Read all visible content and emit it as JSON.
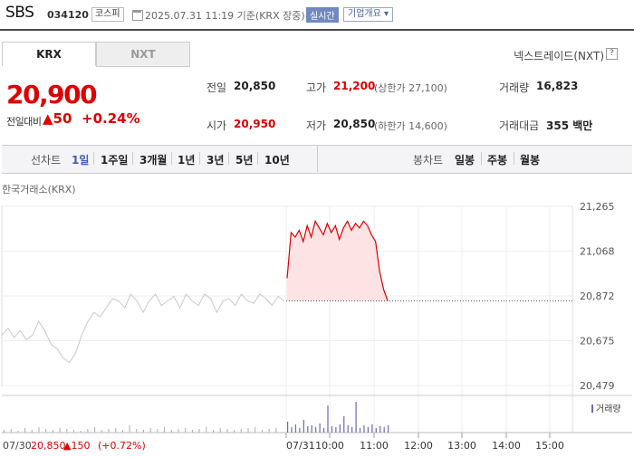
{
  "header": {
    "stock_name": "SBS",
    "stock_code": "034120",
    "market_badge": "코스피",
    "datetime": "2025.07.31 11:19 기준(KRX 장중)",
    "live_label": "실시간",
    "corp_info_label": "기업개요 ▾"
  },
  "tabs": [
    {
      "label": "KRX"
    },
    {
      "label": "NXT"
    }
  ],
  "nxt_link": "넥스트레이드(NXT)",
  "help_icon": "?",
  "quote": {
    "price": "20,900",
    "change_label": "전일대비",
    "change": "▲50",
    "change_pct": "+0.24%",
    "prev_close_label": "전일",
    "prev_close": "20,850",
    "open_label": "시가",
    "open": "20,950",
    "high_label": "고가",
    "high": "21,200",
    "upper_limit": "(상한가 27,100)",
    "low_label": "저가",
    "low": "20,850",
    "lower_limit": "(하한가 14,600)",
    "volume_label": "거래량",
    "volume": "16,823",
    "amount_label": "거래대금",
    "amount": "355 백만"
  },
  "line_chart_bar": {
    "label": "선차트",
    "periods": [
      "1일",
      "1주일",
      "3개월",
      "1년",
      "3년",
      "5년",
      "10년"
    ],
    "active": "1일"
  },
  "candle_bar": {
    "label": "봉차트",
    "periods": [
      "일봉",
      "주봉",
      "월봉"
    ]
  },
  "colors": {
    "up": "#dd0000",
    "accent": "#3b5bb5",
    "gray_line": "#c8c8cc",
    "volume": "#6a6ab0",
    "fill": "#fde3e3"
  },
  "chart_data": {
    "type": "line",
    "market_label": "한국거래소(KRX)",
    "y_ticks": [
      "21,265",
      "21,068",
      "20,872",
      "20,675",
      "20,479"
    ],
    "ylim": [
      20479,
      21265
    ],
    "x_ticks": [
      "07/31",
      "10:00",
      "11:00",
      "12:00",
      "13:00",
      "14:00",
      "15:00"
    ],
    "prev_close_line": 20850,
    "series": [
      {
        "values_prev_day": [
          20700,
          20730,
          20690,
          20720,
          20680,
          20700,
          20760,
          20720,
          20660,
          20640,
          20600,
          20580,
          20620,
          20700,
          20760,
          20800,
          20780,
          20820,
          20860,
          20850,
          20820,
          20880,
          20850,
          20800,
          20850,
          20880,
          20830,
          20850,
          20870,
          20820,
          20880,
          20850,
          20830,
          20880,
          20860,
          20800,
          20850,
          20860,
          20830,
          20880,
          20850,
          20840,
          20880,
          20860,
          20830,
          20870,
          20850
        ],
        "values_today": [
          20950,
          21150,
          21130,
          21160,
          21110,
          21180,
          21130,
          21200,
          21170,
          21140,
          21190,
          21150,
          21180,
          21120,
          21170,
          21200,
          21160,
          21190,
          21170,
          21200,
          21180,
          21140,
          21110,
          20980,
          20900,
          20850
        ]
      }
    ],
    "volume_label": "거래량"
  },
  "footer": {
    "prev_date": "07/30",
    "prev_price": "20,850",
    "prev_change": "▲150",
    "prev_pct": "(+0.72%)"
  }
}
